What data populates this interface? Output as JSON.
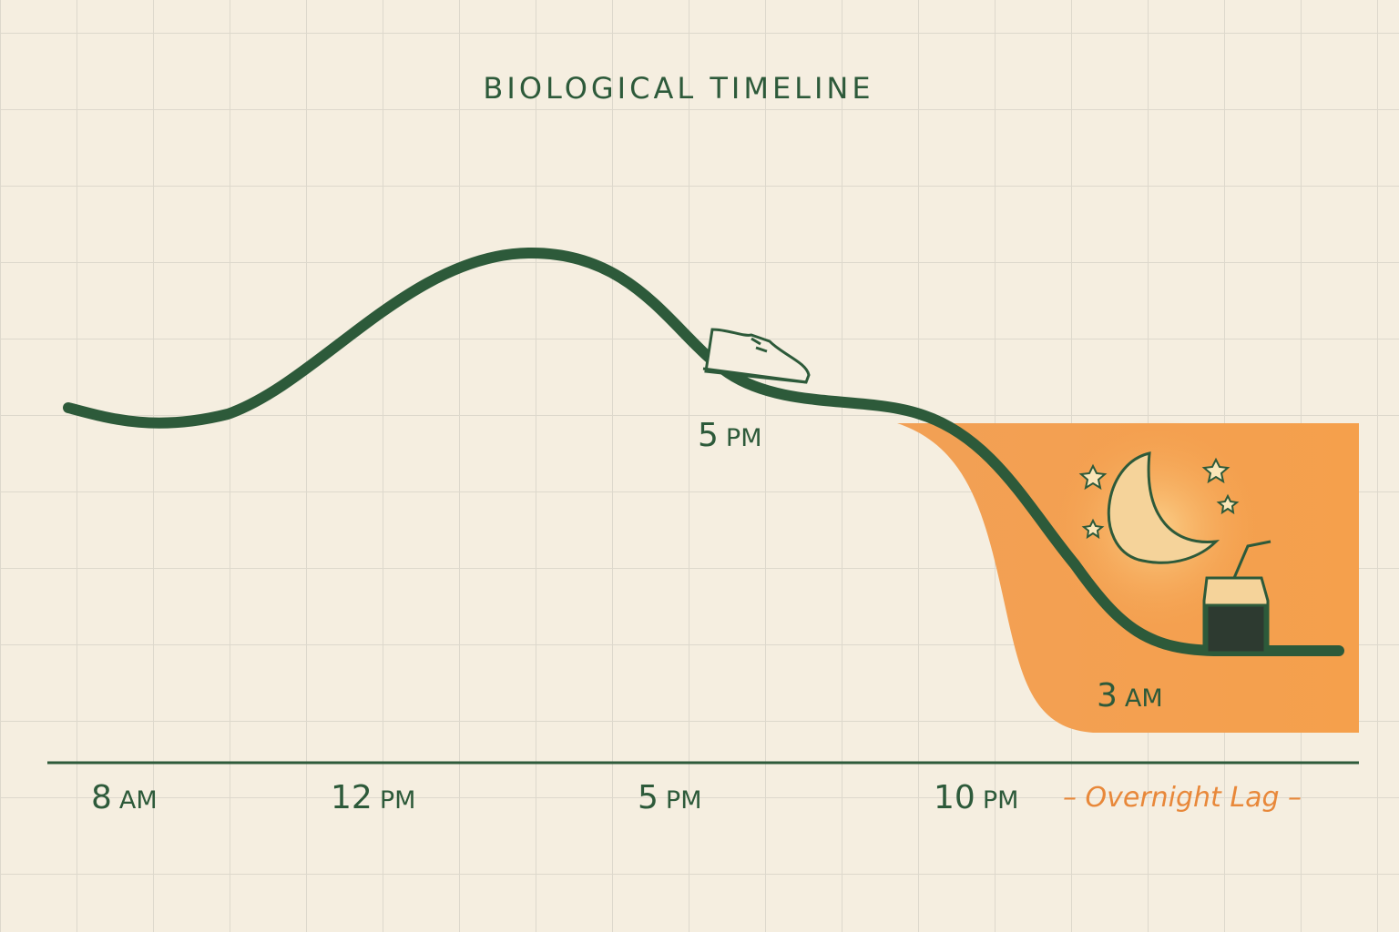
{
  "title": "BIOLOGICAL TIMELINE",
  "axis_labels": [
    {
      "number": "8",
      "suffix": "AM"
    },
    {
      "number": "12",
      "suffix": "PM"
    },
    {
      "number": "5",
      "suffix": "PM"
    },
    {
      "number": "10",
      "suffix": "PM"
    }
  ],
  "overnight_label": "– Overnight Lag –",
  "markers": [
    {
      "number": "5",
      "suffix": "PM"
    },
    {
      "number": "3",
      "suffix": "AM"
    }
  ]
}
